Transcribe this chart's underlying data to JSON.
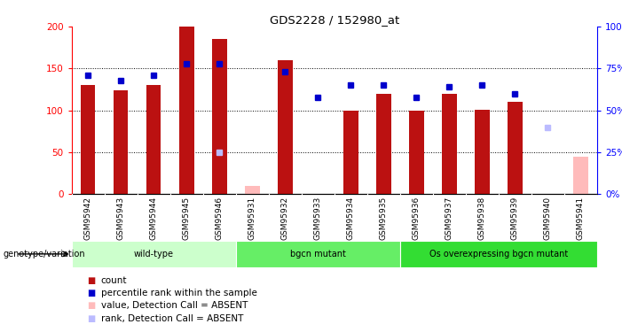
{
  "title": "GDS2228 / 152980_at",
  "samples": [
    "GSM95942",
    "GSM95943",
    "GSM95944",
    "GSM95945",
    "GSM95946",
    "GSM95931",
    "GSM95932",
    "GSM95933",
    "GSM95934",
    "GSM95935",
    "GSM95936",
    "GSM95937",
    "GSM95938",
    "GSM95939",
    "GSM95940",
    "GSM95941"
  ],
  "counts": [
    130,
    124,
    130,
    200,
    185,
    null,
    160,
    null,
    100,
    120,
    100,
    120,
    101,
    110,
    null,
    null
  ],
  "ranks_pct": [
    71,
    68,
    71,
    78,
    78,
    null,
    73,
    58,
    65,
    65,
    58,
    64,
    65,
    60,
    null,
    null
  ],
  "absent_counts": [
    null,
    null,
    null,
    null,
    null,
    10,
    null,
    null,
    null,
    null,
    null,
    null,
    null,
    null,
    null,
    45
  ],
  "absent_ranks_pct": [
    null,
    null,
    null,
    null,
    25,
    null,
    null,
    null,
    null,
    null,
    null,
    null,
    null,
    null,
    40,
    null
  ],
  "groups": [
    {
      "name": "wild-type",
      "start": 0,
      "end": 5,
      "color": "#ccffcc"
    },
    {
      "name": "bgcn mutant",
      "start": 5,
      "end": 10,
      "color": "#66ee66"
    },
    {
      "name": "Os overexpressing bgcn mutant",
      "start": 10,
      "end": 16,
      "color": "#33dd33"
    }
  ],
  "bar_color": "#bb1111",
  "rank_color": "#0000cc",
  "absent_bar_color": "#ffbbbb",
  "absent_rank_color": "#bbbbff",
  "ylim_left": [
    0,
    200
  ],
  "ylim_right": [
    0,
    100
  ],
  "yticks_left": [
    0,
    50,
    100,
    150,
    200
  ],
  "yticks_right": [
    0,
    25,
    50,
    75,
    100
  ],
  "background_color": "#ffffff"
}
